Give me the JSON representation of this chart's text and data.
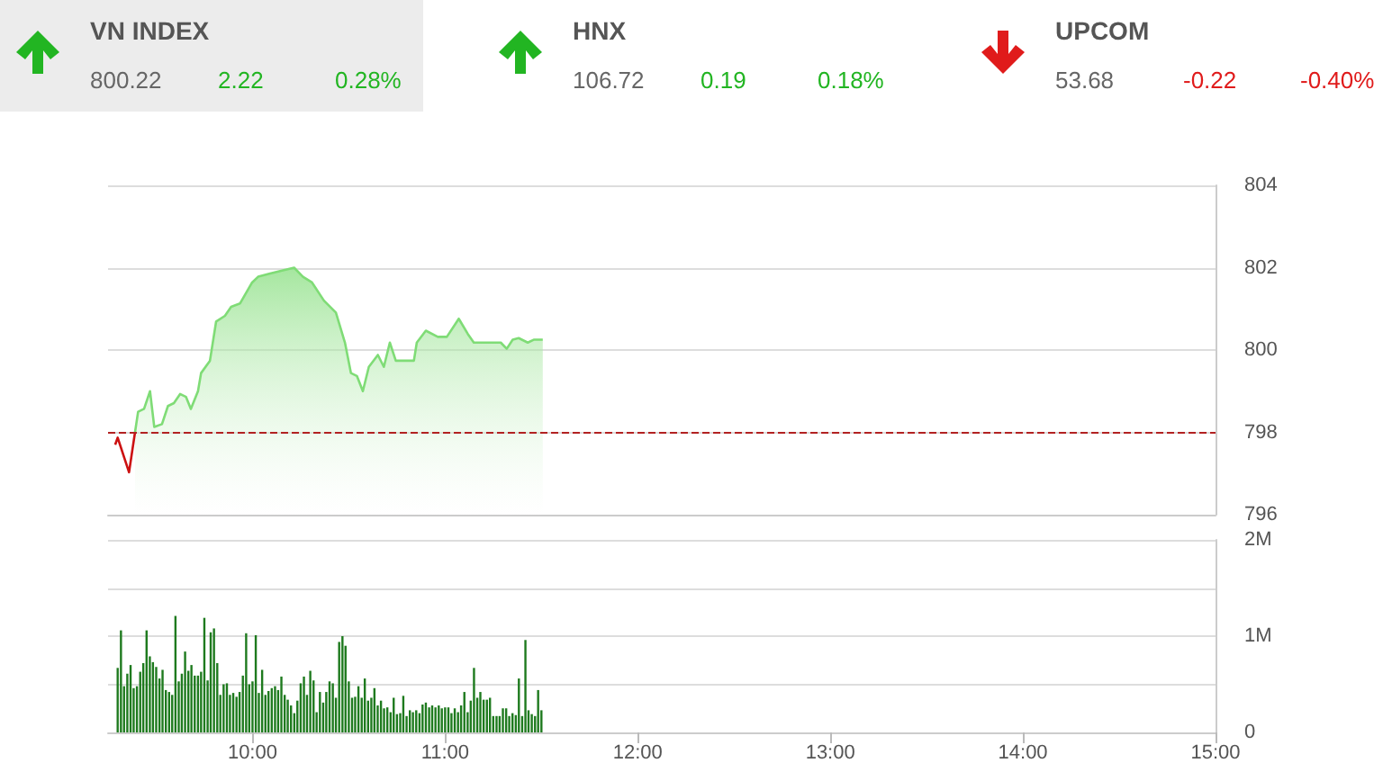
{
  "chart_data": [
    {
      "type": "other",
      "categories": [
        "VN INDEX",
        "HNX",
        "UPCOM"
      ],
      "values": [
        2.22,
        0.19,
        -0.22
      ],
      "value_labels": [
        "2.22",
        "0.19",
        "-0.22"
      ],
      "annotations": [
        "800.22",
        "0.28%",
        "106.72",
        "0.18%",
        "53.68",
        "-0.40%"
      ]
    },
    {
      "type": "area",
      "xlim": [
        9.25,
        15
      ],
      "ylim": [
        796,
        804
      ],
      "yticks": [
        796,
        798,
        800,
        802,
        804
      ],
      "grid": "y",
      "tick_labels": "y",
      "ref_lines": [
        {
          "axis": "y",
          "value": 798,
          "color": "#b22222",
          "line_style": "dashed"
        }
      ],
      "series": [
        {
          "type": "line",
          "color": "#cc1111",
          "x": [
            9.287,
            9.3,
            9.359,
            9.39
          ],
          "values": [
            797.7,
            797.87,
            797.03,
            798.0
          ]
        },
        {
          "type": "area",
          "color": "#7fdc76",
          "x": [
            9.39,
            9.406,
            9.437,
            9.468,
            9.49,
            9.53,
            9.561,
            9.592,
            9.624,
            9.655,
            9.68,
            9.717,
            9.733,
            9.779,
            9.811,
            9.857,
            9.889,
            9.935,
            9.998,
            10.029,
            10.091,
            10.153,
            10.216,
            10.262,
            10.309,
            10.371,
            10.433,
            10.48,
            10.511,
            10.542,
            10.573,
            10.604,
            10.651,
            10.682,
            10.713,
            10.744,
            10.838,
            10.853,
            10.9,
            10.962,
            11.009,
            11.071,
            11.118,
            11.149,
            11.243,
            11.289,
            11.32,
            11.351,
            11.382,
            11.429,
            11.46,
            11.507
          ],
          "values": [
            798.0,
            798.5,
            798.57,
            799.0,
            798.13,
            798.2,
            798.64,
            798.71,
            798.93,
            798.86,
            798.57,
            799.0,
            799.44,
            799.74,
            800.69,
            800.83,
            801.05,
            801.13,
            801.64,
            801.78,
            801.86,
            801.93,
            802.0,
            801.78,
            801.64,
            801.2,
            800.91,
            800.18,
            799.44,
            799.37,
            799.0,
            799.59,
            799.88,
            799.59,
            800.18,
            799.74,
            799.74,
            800.18,
            800.47,
            800.32,
            800.32,
            800.76,
            800.39,
            800.18,
            800.18,
            800.18,
            800.03,
            800.25,
            800.29,
            800.18,
            800.25,
            800.25
          ]
        }
      ]
    },
    {
      "type": "bar",
      "xlim": [
        9.25,
        15
      ],
      "xticks": [
        {
          "value": 10,
          "label": "10:00"
        },
        {
          "value": 11,
          "label": "11:00"
        },
        {
          "value": 12,
          "label": "12:00"
        },
        {
          "value": 13,
          "label": "13:00"
        },
        {
          "value": 14,
          "label": "14:00"
        },
        {
          "value": 15,
          "label": "15:00"
        }
      ],
      "ylim": [
        0,
        2
      ],
      "yticks": [
        0,
        {
          "value": 1,
          "label": "1M"
        },
        {
          "value": 2,
          "label": "2M"
        }
      ],
      "grid": "y",
      "color": "#1e7a1e",
      "x": [
        9.3,
        9.317,
        9.333,
        9.35,
        9.367,
        9.383,
        9.4,
        9.417,
        9.433,
        9.45,
        9.467,
        9.483,
        9.5,
        9.517,
        9.533,
        9.55,
        9.567,
        9.583,
        9.6,
        9.617,
        9.633,
        9.65,
        9.667,
        9.683,
        9.7,
        9.717,
        9.733,
        9.75,
        9.767,
        9.783,
        9.8,
        9.817,
        9.833,
        9.85,
        9.867,
        9.883,
        9.9,
        9.917,
        9.933,
        9.95,
        9.967,
        9.983,
        10.0,
        10.017,
        10.033,
        10.05,
        10.067,
        10.083,
        10.1,
        10.117,
        10.133,
        10.15,
        10.167,
        10.183,
        10.2,
        10.217,
        10.233,
        10.25,
        10.267,
        10.283,
        10.3,
        10.317,
        10.333,
        10.35,
        10.367,
        10.383,
        10.4,
        10.417,
        10.433,
        10.45,
        10.467,
        10.483,
        10.5,
        10.517,
        10.533,
        10.55,
        10.567,
        10.583,
        10.6,
        10.617,
        10.633,
        10.65,
        10.667,
        10.683,
        10.7,
        10.717,
        10.733,
        10.75,
        10.767,
        10.783,
        10.8,
        10.817,
        10.833,
        10.85,
        10.867,
        10.883,
        10.9,
        10.917,
        10.933,
        10.95,
        10.967,
        10.983,
        11.0,
        11.017,
        11.033,
        11.05,
        11.067,
        11.083,
        11.1,
        11.117,
        11.133,
        11.15,
        11.167,
        11.183,
        11.2,
        11.217,
        11.233,
        11.25,
        11.267,
        11.283,
        11.3,
        11.317,
        11.333,
        11.35,
        11.367,
        11.383,
        11.4,
        11.417,
        11.433,
        11.45,
        11.467,
        11.483,
        11.5
      ],
      "values": [
        0.67,
        1.06,
        0.48,
        0.61,
        0.7,
        0.46,
        0.48,
        0.63,
        0.72,
        1.06,
        0.79,
        0.73,
        0.68,
        0.56,
        0.65,
        0.44,
        0.42,
        0.39,
        1.21,
        0.53,
        0.61,
        0.84,
        0.64,
        0.7,
        0.59,
        0.59,
        0.63,
        1.19,
        0.54,
        1.04,
        1.08,
        0.72,
        0.39,
        0.5,
        0.51,
        0.39,
        0.41,
        0.37,
        0.42,
        0.59,
        1.03,
        0.5,
        0.53,
        1.01,
        0.41,
        0.65,
        0.39,
        0.43,
        0.46,
        0.48,
        0.44,
        0.58,
        0.39,
        0.34,
        0.28,
        0.2,
        0.33,
        0.51,
        0.58,
        0.39,
        0.64,
        0.54,
        0.21,
        0.42,
        0.31,
        0.42,
        0.53,
        0.51,
        0.36,
        0.94,
        1.0,
        0.9,
        0.53,
        0.36,
        0.37,
        0.48,
        0.36,
        0.56,
        0.33,
        0.36,
        0.46,
        0.28,
        0.33,
        0.25,
        0.26,
        0.21,
        0.36,
        0.19,
        0.2,
        0.38,
        0.17,
        0.23,
        0.21,
        0.23,
        0.2,
        0.29,
        0.31,
        0.26,
        0.28,
        0.26,
        0.28,
        0.25,
        0.26,
        0.26,
        0.2,
        0.25,
        0.21,
        0.28,
        0.42,
        0.21,
        0.33,
        0.67,
        0.36,
        0.42,
        0.34,
        0.34,
        0.36,
        0.17,
        0.17,
        0.17,
        0.25,
        0.25,
        0.17,
        0.2,
        0.18,
        0.56,
        0.17,
        0.96,
        0.23,
        0.19,
        0.17,
        0.44,
        0.23
      ]
    }
  ]
}
